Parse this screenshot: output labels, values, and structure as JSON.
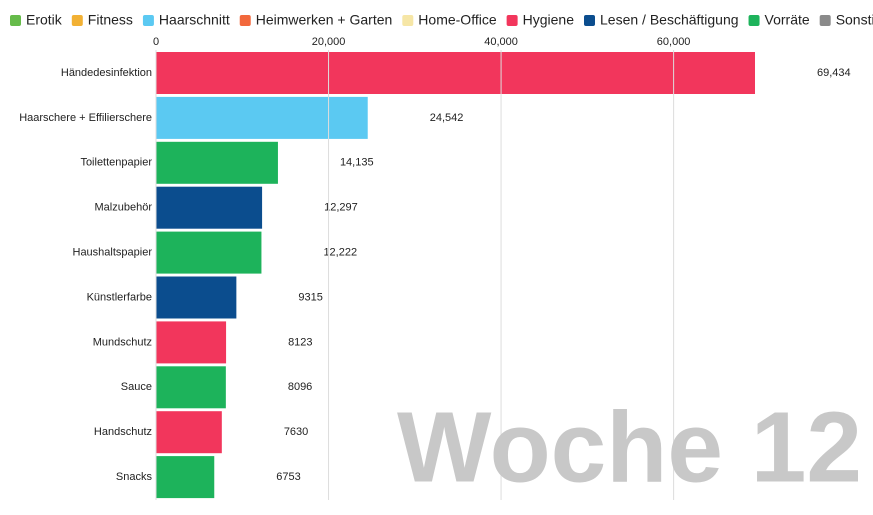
{
  "chart_data": {
    "type": "barh",
    "legend": [
      {
        "name": "Erotik",
        "color": "#66bb4a"
      },
      {
        "name": "Fitness",
        "color": "#f2b134"
      },
      {
        "name": "Haarschnitt",
        "color": "#5bc9f2"
      },
      {
        "name": "Heimwerken + Garten",
        "color": "#f2683c"
      },
      {
        "name": "Home-Office",
        "color": "#f6e6a6"
      },
      {
        "name": "Hygiene",
        "color": "#f2365c"
      },
      {
        "name": "Lesen / Beschäftigung",
        "color": "#0b4d8e"
      },
      {
        "name": "Vorräte",
        "color": "#1db35b"
      },
      {
        "name": "Sonstiges",
        "color": "#8a8a8a"
      }
    ],
    "categories": [
      "Händedesinfektion",
      "Haarschere + Effilierschere",
      "Toilettenpapier",
      "Malzubehör",
      "Haushaltspapier",
      "Künstlerfarbe",
      "Mundschutz",
      "Sauce",
      "Handschutz",
      "Snacks"
    ],
    "values": [
      69434,
      24542,
      14135,
      12297,
      12222,
      9315,
      8123,
      8096,
      7630,
      6753
    ],
    "value_labels": [
      "69,434",
      "24,542",
      "14,135",
      "12,297",
      "12,222",
      "9315",
      "8123",
      "8096",
      "7630",
      "6753"
    ],
    "colors": [
      "#f2365c",
      "#5bc9f2",
      "#1db35b",
      "#0b4d8e",
      "#1db35b",
      "#0b4d8e",
      "#f2365c",
      "#1db35b",
      "#f2365c",
      "#1db35b"
    ],
    "xlim": [
      0,
      69434
    ],
    "xticks": [
      0,
      {
        "value": 20000,
        "label": "20,000"
      },
      {
        "value": 40000,
        "label": "40,000"
      },
      {
        "value": 60000,
        "label": "60,000"
      }
    ],
    "grid": true,
    "annotation": "Woche 12"
  }
}
